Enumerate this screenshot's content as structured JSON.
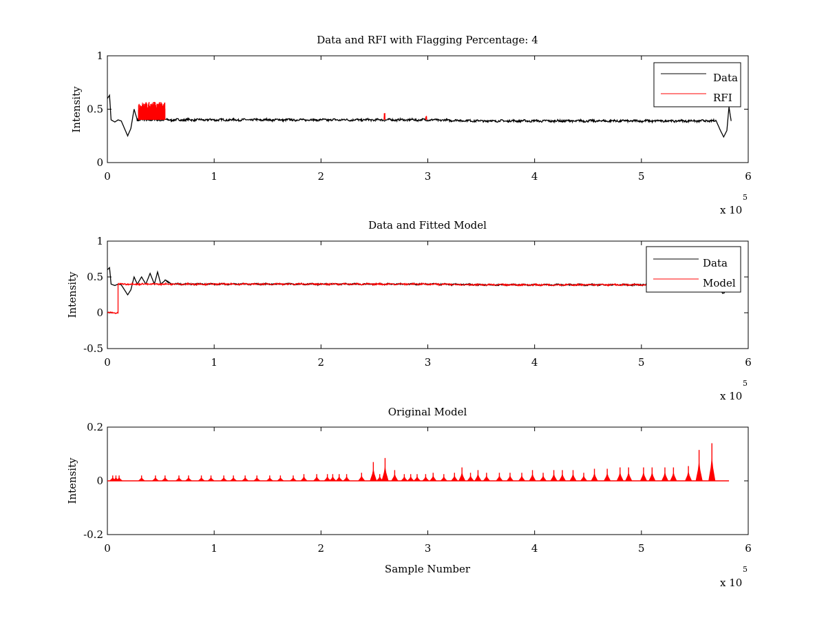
{
  "figure": {
    "background": "#ffffff",
    "colors": {
      "data": "#000000",
      "rfi": "#ff0000",
      "model": "#ff0000",
      "axes": "#000000"
    }
  },
  "chart_data": [
    {
      "type": "line",
      "title": "Data and RFI with Flagging Percentage: 4",
      "xlabel": "",
      "ylabel": "Intensity",
      "xlim": [
        0,
        6
      ],
      "ylim": [
        0,
        1
      ],
      "xticks": [
        "0",
        "1",
        "2",
        "3",
        "4",
        "5",
        "6"
      ],
      "yticks": [
        "0",
        "0.5",
        "1"
      ],
      "x_exponent": {
        "base": "x 10",
        "power": "5"
      },
      "grid": false,
      "legend": {
        "placement": "top-right",
        "entries": [
          "Data",
          "RFI"
        ]
      },
      "series": [
        {
          "name": "Data",
          "color": "#000000",
          "points": [
            [
              0.0,
              0.6
            ],
            [
              0.02,
              0.63
            ],
            [
              0.035,
              0.4
            ],
            [
              0.07,
              0.38
            ],
            [
              0.1,
              0.4
            ],
            [
              0.13,
              0.39
            ],
            [
              0.16,
              0.32
            ],
            [
              0.19,
              0.25
            ],
            [
              0.22,
              0.32
            ],
            [
              0.25,
              0.5
            ],
            [
              0.28,
              0.4
            ],
            [
              0.6,
              0.4
            ],
            [
              1.0,
              0.4
            ],
            [
              1.5,
              0.4
            ],
            [
              2.0,
              0.4
            ],
            [
              2.5,
              0.4
            ],
            [
              3.0,
              0.4
            ],
            [
              3.5,
              0.39
            ],
            [
              4.0,
              0.39
            ],
            [
              4.5,
              0.39
            ],
            [
              5.0,
              0.39
            ],
            [
              5.5,
              0.39
            ],
            [
              5.7,
              0.39
            ],
            [
              5.74,
              0.3
            ],
            [
              5.77,
              0.24
            ],
            [
              5.8,
              0.3
            ],
            [
              5.82,
              0.52
            ],
            [
              5.84,
              0.39
            ]
          ]
        },
        {
          "name": "RFI",
          "color": "#ff0000",
          "bursts": [
            {
              "x_start": 0.29,
              "x_end": 0.54,
              "y_base": 0.4,
              "y_peak": 0.57
            },
            {
              "x_start": 2.59,
              "x_end": 2.6,
              "y_base": 0.4,
              "y_peak": 0.47
            },
            {
              "x_start": 2.98,
              "x_end": 2.99,
              "y_base": 0.4,
              "y_peak": 0.44
            }
          ]
        }
      ]
    },
    {
      "type": "line",
      "title": "Data and Fitted Model",
      "xlabel": "",
      "ylabel": "Intensity",
      "xlim": [
        0,
        6
      ],
      "ylim": [
        -0.5,
        1
      ],
      "xticks": [
        "0",
        "1",
        "2",
        "3",
        "4",
        "5",
        "6"
      ],
      "yticks": [
        "-0.5",
        "0",
        "0.5",
        "1"
      ],
      "x_exponent": {
        "base": "x 10",
        "power": "5"
      },
      "grid": false,
      "legend": {
        "placement": "top-right",
        "entries": [
          "Data",
          "Model"
        ]
      },
      "series": [
        {
          "name": "Data",
          "color": "#000000",
          "points": [
            [
              0.0,
              0.6
            ],
            [
              0.02,
              0.63
            ],
            [
              0.035,
              0.4
            ],
            [
              0.07,
              0.38
            ],
            [
              0.1,
              0.4
            ],
            [
              0.13,
              0.39
            ],
            [
              0.16,
              0.32
            ],
            [
              0.19,
              0.25
            ],
            [
              0.22,
              0.32
            ],
            [
              0.25,
              0.5
            ],
            [
              0.28,
              0.4
            ],
            [
              0.32,
              0.5
            ],
            [
              0.36,
              0.4
            ],
            [
              0.4,
              0.55
            ],
            [
              0.44,
              0.4
            ],
            [
              0.47,
              0.57
            ],
            [
              0.5,
              0.4
            ],
            [
              0.54,
              0.45
            ],
            [
              0.6,
              0.4
            ],
            [
              1.0,
              0.4
            ],
            [
              1.5,
              0.4
            ],
            [
              2.0,
              0.4
            ],
            [
              2.5,
              0.4
            ],
            [
              3.0,
              0.4
            ],
            [
              3.5,
              0.39
            ],
            [
              4.0,
              0.39
            ],
            [
              4.5,
              0.39
            ],
            [
              5.0,
              0.39
            ],
            [
              5.5,
              0.39
            ],
            [
              5.72,
              0.39
            ],
            [
              5.76,
              0.27
            ],
            [
              5.78,
              0.28
            ]
          ]
        },
        {
          "name": "Model",
          "color": "#ff0000",
          "points": [
            [
              0.0,
              0.0
            ],
            [
              0.1,
              0.0
            ],
            [
              0.1,
              0.4
            ],
            [
              0.5,
              0.4
            ],
            [
              1.0,
              0.4
            ],
            [
              1.5,
              0.4
            ],
            [
              2.0,
              0.4
            ],
            [
              2.5,
              0.4
            ],
            [
              3.0,
              0.4
            ],
            [
              3.5,
              0.39
            ],
            [
              4.0,
              0.39
            ],
            [
              4.5,
              0.39
            ],
            [
              5.0,
              0.39
            ],
            [
              5.2,
              0.39
            ]
          ]
        }
      ]
    },
    {
      "type": "line",
      "title": "Original Model",
      "xlabel": "Sample Number",
      "ylabel": "Intensity",
      "xlim": [
        0,
        6
      ],
      "ylim": [
        -0.2,
        0.2
      ],
      "xticks": [
        "0",
        "1",
        "2",
        "3",
        "4",
        "5",
        "6"
      ],
      "yticks": [
        "-0.2",
        "0",
        "0.2"
      ],
      "x_exponent": {
        "base": "x 10",
        "power": "5"
      },
      "grid": false,
      "legend": null,
      "series": [
        {
          "color": "#ff0000",
          "baseline": 0.0,
          "x_end": 5.82,
          "spikes": [
            [
              0.05,
              0.02
            ],
            [
              0.08,
              0.02
            ],
            [
              0.11,
              0.02
            ],
            [
              0.32,
              0.02
            ],
            [
              0.45,
              0.02
            ],
            [
              0.54,
              0.02
            ],
            [
              0.67,
              0.02
            ],
            [
              0.76,
              0.02
            ],
            [
              0.88,
              0.02
            ],
            [
              0.97,
              0.02
            ],
            [
              1.09,
              0.02
            ],
            [
              1.18,
              0.02
            ],
            [
              1.29,
              0.02
            ],
            [
              1.4,
              0.02
            ],
            [
              1.52,
              0.02
            ],
            [
              1.62,
              0.02
            ],
            [
              1.74,
              0.02
            ],
            [
              1.84,
              0.025
            ],
            [
              1.96,
              0.025
            ],
            [
              2.06,
              0.025
            ],
            [
              2.11,
              0.025
            ],
            [
              2.17,
              0.025
            ],
            [
              2.24,
              0.025
            ],
            [
              2.38,
              0.03
            ],
            [
              2.49,
              0.07
            ],
            [
              2.55,
              0.025
            ],
            [
              2.6,
              0.085
            ],
            [
              2.69,
              0.04
            ],
            [
              2.78,
              0.025
            ],
            [
              2.84,
              0.025
            ],
            [
              2.9,
              0.025
            ],
            [
              2.98,
              0.025
            ],
            [
              3.05,
              0.03
            ],
            [
              3.15,
              0.025
            ],
            [
              3.25,
              0.03
            ],
            [
              3.32,
              0.05
            ],
            [
              3.4,
              0.03
            ],
            [
              3.47,
              0.04
            ],
            [
              3.55,
              0.03
            ],
            [
              3.67,
              0.03
            ],
            [
              3.77,
              0.03
            ],
            [
              3.88,
              0.03
            ],
            [
              3.98,
              0.04
            ],
            [
              4.08,
              0.03
            ],
            [
              4.18,
              0.04
            ],
            [
              4.26,
              0.04
            ],
            [
              4.36,
              0.04
            ],
            [
              4.46,
              0.03
            ],
            [
              4.56,
              0.045
            ],
            [
              4.68,
              0.045
            ],
            [
              4.8,
              0.05
            ],
            [
              4.88,
              0.05
            ],
            [
              5.02,
              0.05
            ],
            [
              5.1,
              0.05
            ],
            [
              5.22,
              0.05
            ],
            [
              5.3,
              0.05
            ],
            [
              5.44,
              0.055
            ],
            [
              5.54,
              0.115
            ],
            [
              5.66,
              0.14
            ]
          ]
        }
      ]
    }
  ]
}
